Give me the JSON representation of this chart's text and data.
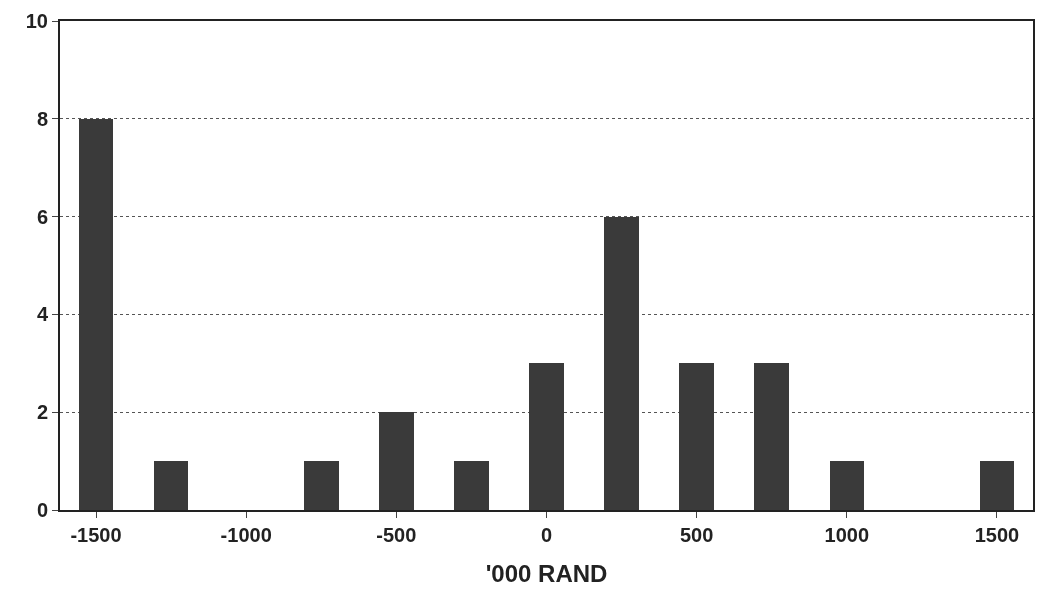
{
  "chart_data": {
    "type": "bar",
    "xlabel": "'000 RAND",
    "x": [
      -1500,
      -1250,
      -1000,
      -750,
      -500,
      -250,
      0,
      250,
      500,
      750,
      1000,
      1250,
      1500
    ],
    "values": [
      8,
      1,
      0,
      1,
      2,
      1,
      3,
      6,
      3,
      3,
      1,
      0,
      1
    ],
    "color": "#3a3a3a",
    "xlim": [
      -1620,
      1620
    ],
    "xticks": [
      -1500,
      -1000,
      -500,
      0,
      500,
      1000,
      1500
    ],
    "ylim": [
      0,
      10
    ],
    "yticks": [
      0,
      2,
      4,
      6,
      8,
      10
    ],
    "grid": "y",
    "legend": false
  }
}
